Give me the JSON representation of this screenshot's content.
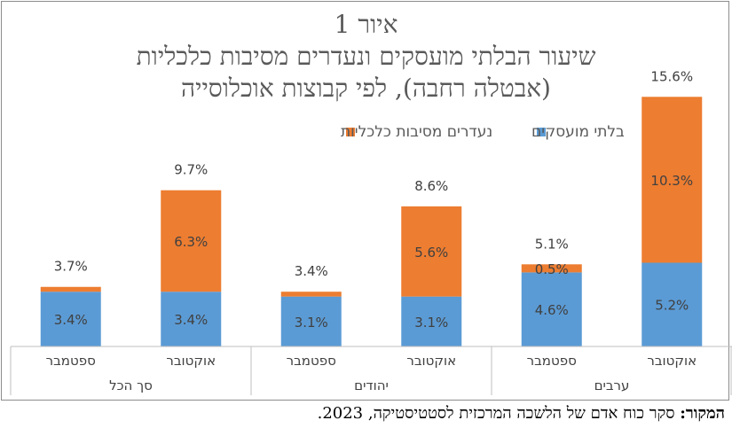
{
  "title": {
    "line1": "איור 1",
    "line2": "שיעור הבלתי מועסקים ונעדרים מסיבות כלכליות",
    "line3": "(אבטלה רחבה), לפי קבוצות אוכלוסייה"
  },
  "source": {
    "label": "המקור:",
    "text": "סקר כוח אדם של הלשכה המרכזית לסטטיסטיקה, 2023."
  },
  "chart_data": {
    "type": "bar",
    "stacked": true,
    "ylim": [
      0,
      17
    ],
    "grid": false,
    "legend": "top",
    "colors": {
      "unemployed": "#5B9BD5",
      "absent": "#ED7D31"
    },
    "categories": [
      {
        "month": "אוקטובר",
        "group": "ערבים"
      },
      {
        "month": "ספטמבר",
        "group": "ערבים"
      },
      {
        "month": "אוקטובר",
        "group": "יהודים"
      },
      {
        "month": "ספטמבר",
        "group": "יהודים"
      },
      {
        "month": "אוקטובר",
        "group": "סך הכל"
      },
      {
        "month": "ספטמבר",
        "group": "סך הכל"
      }
    ],
    "groups": [
      "ערבים",
      "יהודים",
      "סך הכל"
    ],
    "series": [
      {
        "name": "בלתי מועסקים",
        "values": [
          5.2,
          4.6,
          3.1,
          3.1,
          3.4,
          3.4
        ],
        "labels": [
          "5.2%",
          "4.6%",
          "3.1%",
          "3.1%",
          "3.4%",
          "3.4%"
        ]
      },
      {
        "name": "נעדרים מסיבות כלכליות",
        "values": [
          10.3,
          0.5,
          5.6,
          0.3,
          6.3,
          0.3
        ],
        "labels": [
          "10.3%",
          "0.5%",
          "5.6%",
          "",
          "6.3%",
          ""
        ]
      }
    ],
    "totals": [
      15.6,
      5.1,
      8.6,
      3.4,
      9.7,
      3.7
    ],
    "total_labels": [
      "15.6%",
      "5.1%",
      "8.6%",
      "3.4%",
      "9.7%",
      "3.7%"
    ]
  }
}
